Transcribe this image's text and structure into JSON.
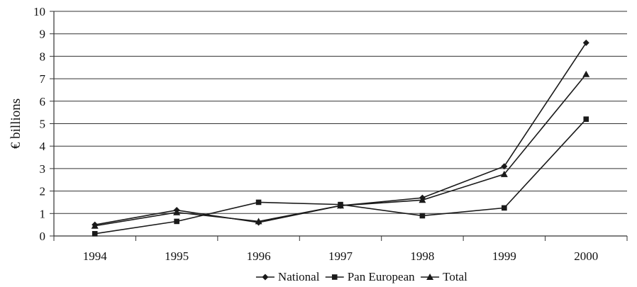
{
  "chart_data": {
    "type": "line",
    "title": "",
    "xlabel": "",
    "ylabel": "€ billions",
    "categories": [
      "1994",
      "1995",
      "1996",
      "1997",
      "1998",
      "1999",
      "2000"
    ],
    "y_ticks": [
      "0",
      "1",
      "2",
      "3",
      "4",
      "5",
      "6",
      "7",
      "8",
      "9",
      "10"
    ],
    "ylim": [
      0,
      10
    ],
    "grid": true,
    "legend_position": "bottom",
    "series": [
      {
        "name": "National",
        "marker": "diamond",
        "values": [
          0.5,
          1.15,
          0.6,
          1.35,
          1.7,
          3.1,
          8.6
        ]
      },
      {
        "name": "Pan European",
        "marker": "square",
        "values": [
          0.1,
          0.65,
          1.5,
          1.4,
          0.9,
          1.25,
          5.2
        ]
      },
      {
        "name": "Total",
        "marker": "triangle",
        "values": [
          0.45,
          1.05,
          0.65,
          1.35,
          1.6,
          2.75,
          7.2
        ]
      }
    ],
    "colors": {
      "line": "#1a1a1a",
      "axis": "#333333"
    }
  }
}
